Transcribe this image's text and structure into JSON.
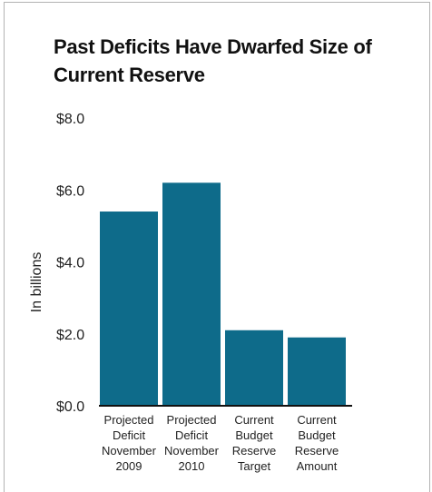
{
  "chart_data": {
    "type": "bar",
    "title": "Past Deficits Have Dwarfed Size of Current Reserve",
    "ylabel": "In billions",
    "xlabel": "",
    "ylim": [
      0,
      8
    ],
    "yticks": [
      0,
      2,
      4,
      6,
      8
    ],
    "ytick_labels": [
      "$0.0",
      "$2.0",
      "$4.0",
      "$6.0",
      "$8.0"
    ],
    "categories": [
      [
        "Projected",
        "Deficit",
        "November",
        "2009"
      ],
      [
        "Projected",
        "Deficit",
        "November",
        "2010"
      ],
      [
        "Current",
        "Budget",
        "Reserve",
        "Target"
      ],
      [
        "Current",
        "Budget",
        "Reserve",
        "Amount"
      ]
    ],
    "values": [
      5.4,
      6.2,
      2.1,
      1.9
    ],
    "bar_color": "#0e6b8a",
    "axis_color": "#111111",
    "grid": false,
    "legend": "none"
  }
}
